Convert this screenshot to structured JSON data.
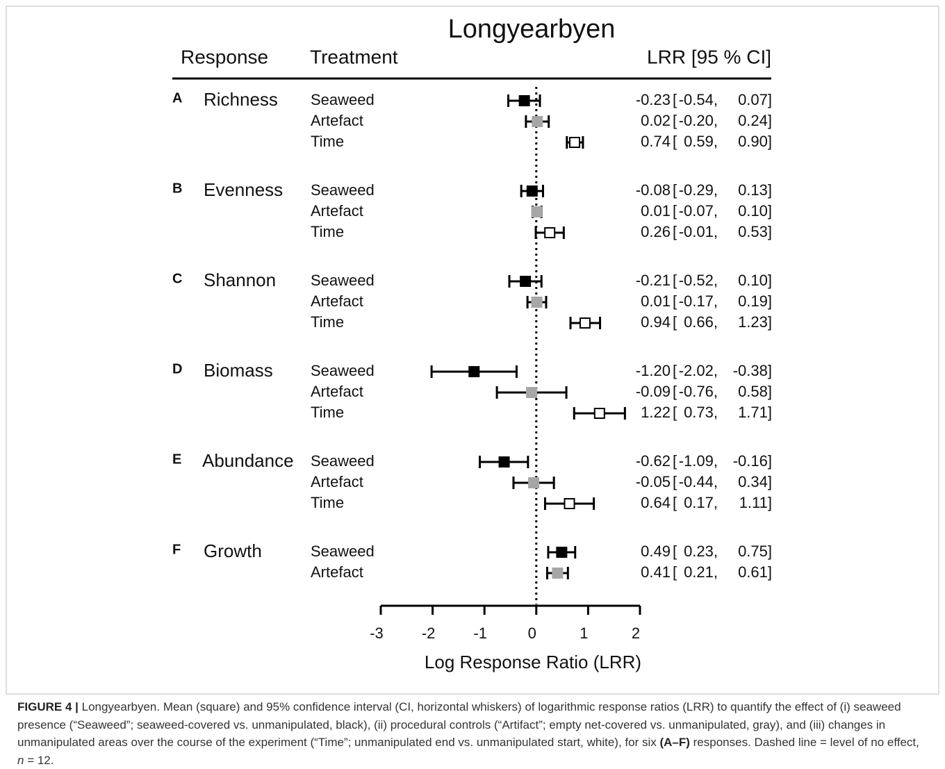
{
  "chart_data": {
    "type": "forest",
    "title": "Longyearbyen",
    "headers": [
      "Response",
      "Treatment",
      "LRR [95 % CI]"
    ],
    "xlabel": "Log Response Ratio (LRR)",
    "xlim": [
      -3,
      2
    ],
    "xticks": [
      -3,
      -2,
      -1,
      0,
      1,
      2
    ],
    "reference_line": 0,
    "treatment_colors": {
      "Seaweed": "#000000",
      "Artefact": "#a6a6a6",
      "Time": "#ffffff"
    },
    "groups": [
      {
        "letter": "A",
        "response": "Richness",
        "rows": [
          {
            "treatment": "Seaweed",
            "values": [
              -0.23,
              -0.54,
              0.07
            ],
            "value_labels": [
              "-0.23",
              "-0.54,",
              "0.07]"
            ]
          },
          {
            "treatment": "Artefact",
            "values": [
              0.02,
              -0.2,
              0.24
            ],
            "value_labels": [
              "0.02",
              "-0.20,",
              "0.24]"
            ]
          },
          {
            "treatment": "Time",
            "values": [
              0.74,
              0.59,
              0.9
            ],
            "value_labels": [
              "0.74",
              "0.59,",
              "0.90]"
            ]
          }
        ]
      },
      {
        "letter": "B",
        "response": "Evenness",
        "rows": [
          {
            "treatment": "Seaweed",
            "values": [
              -0.08,
              -0.29,
              0.13
            ],
            "value_labels": [
              "-0.08",
              "-0.29,",
              "0.13]"
            ]
          },
          {
            "treatment": "Artefact",
            "values": [
              0.01,
              -0.07,
              0.1
            ],
            "value_labels": [
              "0.01",
              "-0.07,",
              "0.10]"
            ]
          },
          {
            "treatment": "Time",
            "values": [
              0.26,
              -0.01,
              0.53
            ],
            "value_labels": [
              "0.26",
              "-0.01,",
              "0.53]"
            ]
          }
        ]
      },
      {
        "letter": "C",
        "response": "Shannon",
        "rows": [
          {
            "treatment": "Seaweed",
            "values": [
              -0.21,
              -0.52,
              0.1
            ],
            "value_labels": [
              "-0.21",
              "-0.52,",
              "0.10]"
            ]
          },
          {
            "treatment": "Artefact",
            "values": [
              0.01,
              -0.17,
              0.19
            ],
            "value_labels": [
              "0.01",
              "-0.17,",
              "0.19]"
            ]
          },
          {
            "treatment": "Time",
            "values": [
              0.94,
              0.66,
              1.23
            ],
            "value_labels": [
              "0.94",
              "0.66,",
              "1.23]"
            ]
          }
        ]
      },
      {
        "letter": "D",
        "response": "Biomass",
        "rows": [
          {
            "treatment": "Seaweed",
            "values": [
              -1.2,
              -2.02,
              -0.38
            ],
            "value_labels": [
              "-1.20",
              "-2.02,",
              "-0.38]"
            ]
          },
          {
            "treatment": "Artefact",
            "values": [
              -0.09,
              -0.76,
              0.58
            ],
            "value_labels": [
              "-0.09",
              "-0.76,",
              "0.58]"
            ]
          },
          {
            "treatment": "Time",
            "values": [
              1.22,
              0.73,
              1.71
            ],
            "value_labels": [
              "1.22",
              "0.73,",
              "1.71]"
            ]
          }
        ]
      },
      {
        "letter": "E",
        "response": "Abundance",
        "rows": [
          {
            "treatment": "Seaweed",
            "values": [
              -0.62,
              -1.09,
              -0.16
            ],
            "value_labels": [
              "-0.62",
              "-1.09,",
              "-0.16]"
            ]
          },
          {
            "treatment": "Artefact",
            "values": [
              -0.05,
              -0.44,
              0.34
            ],
            "value_labels": [
              "-0.05",
              "-0.44,",
              "0.34]"
            ]
          },
          {
            "treatment": "Time",
            "values": [
              0.64,
              0.17,
              1.11
            ],
            "value_labels": [
              "0.64",
              "0.17,",
              "1.11]"
            ]
          }
        ]
      },
      {
        "letter": "F",
        "response": "Growth",
        "rows": [
          {
            "treatment": "Seaweed",
            "values": [
              0.49,
              0.23,
              0.75
            ],
            "value_labels": [
              "0.49",
              "0.23,",
              "0.75]"
            ]
          },
          {
            "treatment": "Artefact",
            "values": [
              0.41,
              0.21,
              0.61
            ],
            "value_labels": [
              "0.41",
              "0.21,",
              "0.61]"
            ]
          }
        ]
      }
    ]
  },
  "caption": [
    "FIGURE 4 |",
    " Longyearbyen. Mean (square) and 95% confidence interval (CI, horizontal whiskers) of logarithmic response ratios (LRR) to quantify the effect of (i) seaweed presence (“Seaweed”; seaweed-covered vs. unmanipulated, black), (ii) procedural controls (“Artifact”; empty net-covered vs. unmanipulated, gray), and (iii) changes in unmanipulated areas over the course of the experiment (“Time”; unmanipulated end vs. unmanipulated start, white), for six ",
    "(A–F)",
    " responses. Dashed line = level of no effect, ",
    "n",
    " = 12."
  ]
}
